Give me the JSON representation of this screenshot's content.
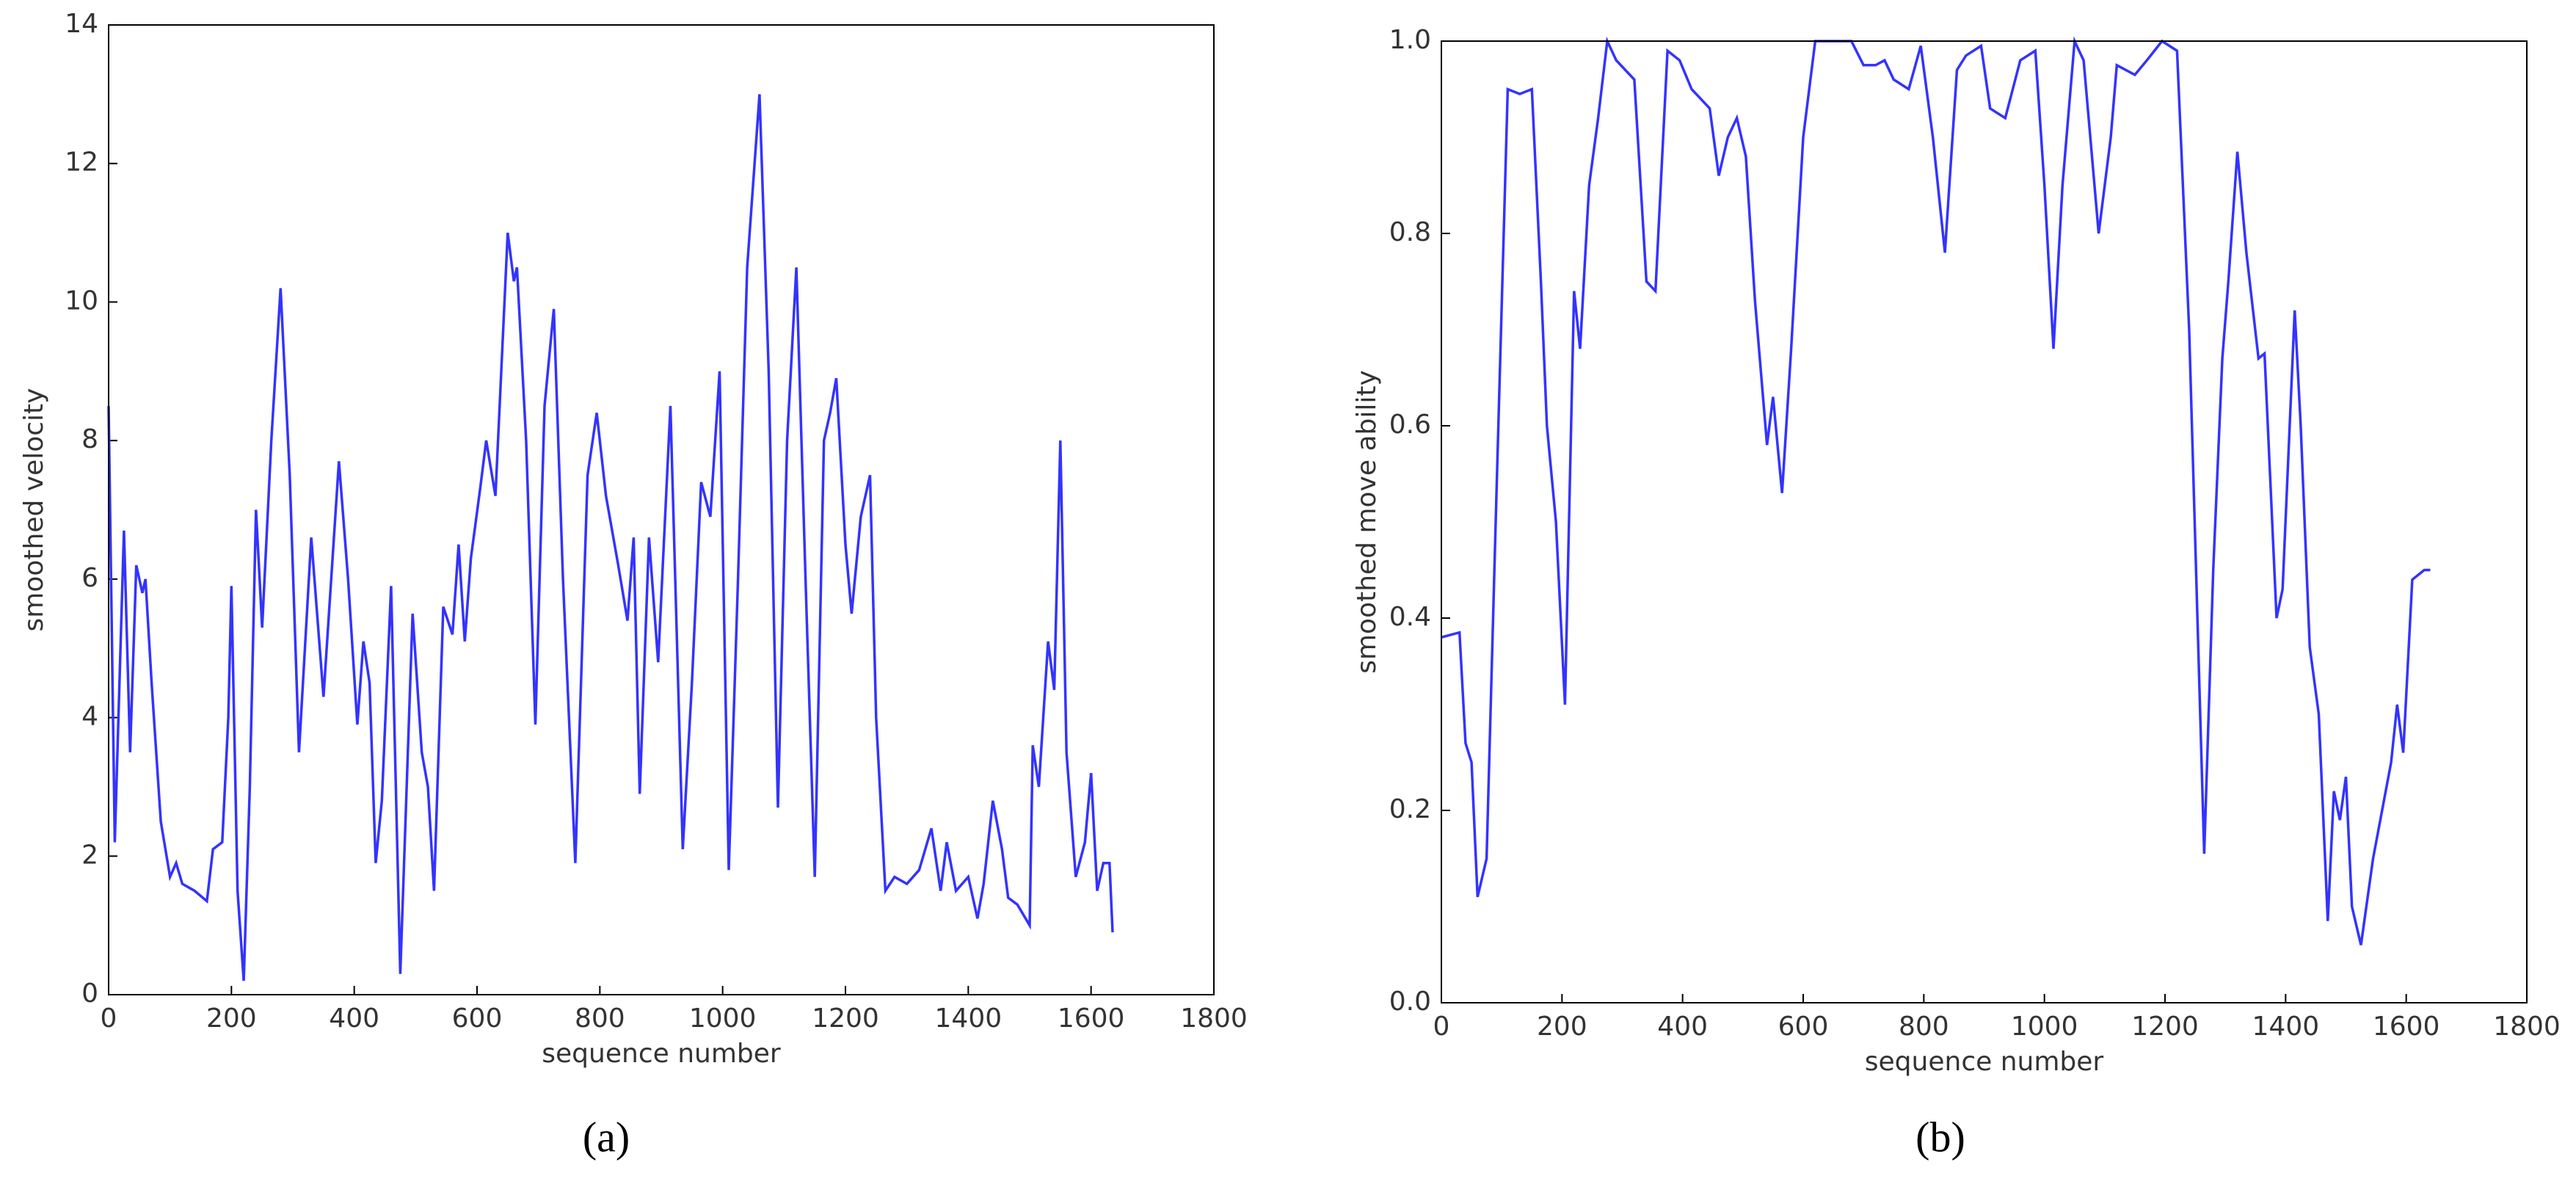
{
  "chart_data": [
    {
      "type": "line",
      "caption": "(a)",
      "xlabel": "sequence number",
      "ylabel": "smoothed velocity",
      "xlim": [
        0,
        1800
      ],
      "xticks": [
        0,
        200,
        400,
        600,
        800,
        1000,
        1200,
        1400,
        1600,
        1800
      ],
      "ylim": [
        0,
        14
      ],
      "yticks": [
        0,
        2,
        4,
        6,
        8,
        10,
        12,
        14
      ],
      "color": "#3333ff",
      "x": [
        0,
        10,
        25,
        35,
        45,
        55,
        60,
        70,
        85,
        100,
        110,
        120,
        140,
        160,
        170,
        185,
        195,
        200,
        210,
        220,
        230,
        240,
        250,
        265,
        280,
        295,
        310,
        330,
        350,
        375,
        390,
        405,
        415,
        425,
        435,
        445,
        460,
        475,
        495,
        510,
        520,
        530,
        545,
        560,
        570,
        580,
        590,
        605,
        615,
        630,
        650,
        660,
        665,
        680,
        695,
        710,
        725,
        740,
        760,
        780,
        795,
        810,
        830,
        845,
        855,
        865,
        880,
        895,
        915,
        935,
        950,
        965,
        980,
        995,
        1010,
        1025,
        1040,
        1060,
        1075,
        1090,
        1105,
        1120,
        1135,
        1150,
        1165,
        1175,
        1185,
        1200,
        1210,
        1225,
        1240,
        1250,
        1265,
        1280,
        1300,
        1320,
        1340,
        1355,
        1365,
        1380,
        1400,
        1415,
        1425,
        1440,
        1455,
        1465,
        1480,
        1500,
        1505,
        1515,
        1530,
        1540,
        1550,
        1560,
        1575,
        1590,
        1600,
        1610,
        1620,
        1630,
        1635
      ],
      "values": [
        8.5,
        2.2,
        6.7,
        3.5,
        6.2,
        5.8,
        6.0,
        4.5,
        2.5,
        1.7,
        1.9,
        1.6,
        1.5,
        1.35,
        2.1,
        2.2,
        4,
        5.9,
        1.5,
        0.2,
        3,
        7.0,
        5.3,
        8,
        10.2,
        7.5,
        3.5,
        6.6,
        4.3,
        7.7,
        6,
        3.9,
        5.1,
        4.5,
        1.9,
        2.8,
        5.9,
        0.3,
        5.5,
        3.5,
        3.0,
        1.5,
        5.6,
        5.2,
        6.5,
        5.1,
        6.3,
        7.3,
        8.0,
        7.2,
        11,
        10.3,
        10.5,
        8,
        3.9,
        8.5,
        9.9,
        6,
        1.9,
        7.5,
        8.4,
        7.2,
        6.2,
        5.4,
        6.6,
        2.9,
        6.6,
        4.8,
        8.5,
        2.1,
        4.5,
        7.4,
        6.9,
        9.0,
        1.8,
        6,
        10.5,
        13,
        9,
        2.7,
        8,
        10.5,
        6,
        1.7,
        8,
        8.4,
        8.9,
        6.5,
        5.5,
        6.9,
        7.5,
        4,
        1.5,
        1.7,
        1.6,
        1.8,
        2.4,
        1.5,
        2.2,
        1.5,
        1.7,
        1.1,
        1.6,
        2.8,
        2.1,
        1.4,
        1.3,
        1.0,
        3.6,
        3.0,
        5.1,
        4.4,
        8.0,
        3.5,
        1.7,
        2.2,
        3.2,
        1.5,
        1.9,
        1.9,
        0.9
      ]
    },
    {
      "type": "line",
      "caption": "(b)",
      "xlabel": "sequence number",
      "ylabel": "smoothed move ability",
      "xlim": [
        0,
        1800
      ],
      "xticks": [
        0,
        200,
        400,
        600,
        800,
        1000,
        1200,
        1400,
        1600,
        1800
      ],
      "ylim": [
        0,
        1
      ],
      "yticks": [
        {
          "value": 0,
          "label": "0.0"
        },
        0.2,
        0.4,
        0.6,
        0.8,
        {
          "value": 1,
          "label": "1.0"
        }
      ],
      "color": "#3333ff",
      "x": [
        0,
        30,
        40,
        50,
        60,
        75,
        90,
        110,
        130,
        150,
        165,
        175,
        190,
        205,
        220,
        230,
        245,
        260,
        275,
        290,
        320,
        340,
        355,
        375,
        395,
        415,
        430,
        445,
        460,
        475,
        490,
        505,
        520,
        540,
        550,
        565,
        580,
        600,
        620,
        680,
        700,
        720,
        735,
        750,
        775,
        795,
        815,
        835,
        855,
        870,
        895,
        910,
        935,
        960,
        985,
        1000,
        1015,
        1030,
        1050,
        1065,
        1090,
        1110,
        1120,
        1150,
        1170,
        1195,
        1220,
        1240,
        1265,
        1280,
        1295,
        1305,
        1320,
        1335,
        1355,
        1365,
        1385,
        1395,
        1415,
        1425,
        1440,
        1455,
        1470,
        1480,
        1490,
        1500,
        1510,
        1525,
        1545,
        1560,
        1575,
        1585,
        1595,
        1610,
        1630,
        1640
      ],
      "values": [
        0.38,
        0.385,
        0.27,
        0.25,
        0.11,
        0.15,
        0.5,
        0.95,
        0.945,
        0.95,
        0.75,
        0.6,
        0.5,
        0.31,
        0.74,
        0.68,
        0.85,
        0.92,
        1.0,
        0.98,
        0.96,
        0.75,
        0.74,
        0.99,
        0.98,
        0.95,
        0.94,
        0.93,
        0.86,
        0.9,
        0.92,
        0.88,
        0.73,
        0.58,
        0.63,
        0.53,
        0.68,
        0.9,
        1.0,
        1.0,
        0.975,
        0.975,
        0.98,
        0.96,
        0.95,
        0.995,
        0.9,
        0.78,
        0.97,
        0.985,
        0.995,
        0.93,
        0.92,
        0.98,
        0.99,
        0.85,
        0.68,
        0.85,
        1.0,
        0.98,
        0.8,
        0.9,
        0.975,
        0.965,
        0.98,
        1.0,
        0.99,
        0.7,
        0.155,
        0.45,
        0.67,
        0.75,
        0.885,
        0.78,
        0.67,
        0.675,
        0.4,
        0.43,
        0.72,
        0.6,
        0.37,
        0.3,
        0.085,
        0.22,
        0.19,
        0.235,
        0.1,
        0.06,
        0.15,
        0.2,
        0.25,
        0.31,
        0.26,
        0.44,
        0.45,
        0.45
      ]
    }
  ]
}
